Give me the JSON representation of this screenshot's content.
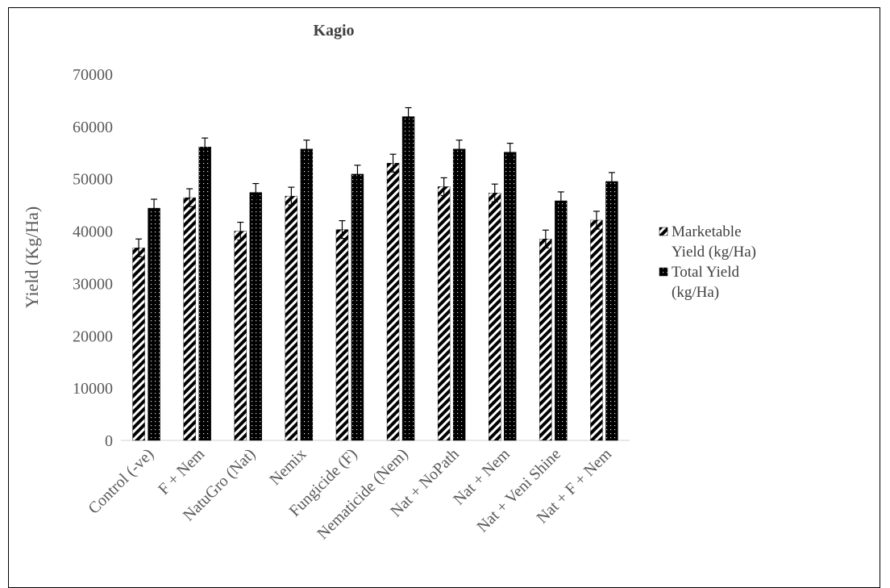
{
  "chart_data": {
    "type": "bar",
    "title": "Kagio",
    "ylabel": "Yield (Kg/Ha)",
    "xlabel": "",
    "ylim": [
      0,
      70000
    ],
    "yticks": [
      0,
      10000,
      20000,
      30000,
      40000,
      50000,
      60000,
      70000
    ],
    "grid": false,
    "legend_position": "right",
    "categories": [
      "Control (-ve)",
      "F + Nem",
      "NatuGro (Nat)",
      "Nemix",
      "Fungicide (F)",
      "Nematicide (Nem)",
      "Nat + NoPath",
      "Nat + Nem",
      "Nat + Veni Shine",
      "Nat + F + Nem"
    ],
    "series": [
      {
        "name": "Marketable Yield (kg/Ha)",
        "pattern": "diagonal-stripes",
        "color": "#000000",
        "values": [
          36800,
          46400,
          40000,
          46700,
          40300,
          53000,
          48500,
          47300,
          38500,
          42100
        ],
        "errors": [
          1700,
          1700,
          1700,
          1700,
          1700,
          1700,
          1700,
          1700,
          1700,
          1700
        ]
      },
      {
        "name": "Total Yield (kg/Ha)",
        "pattern": "dotted-dark",
        "color": "#000000",
        "values": [
          44400,
          56100,
          47400,
          55700,
          50900,
          61900,
          55700,
          55100,
          45800,
          49500
        ],
        "errors": [
          1700,
          1700,
          1700,
          1700,
          1700,
          1700,
          1700,
          1700,
          1700,
          1700
        ]
      }
    ]
  }
}
